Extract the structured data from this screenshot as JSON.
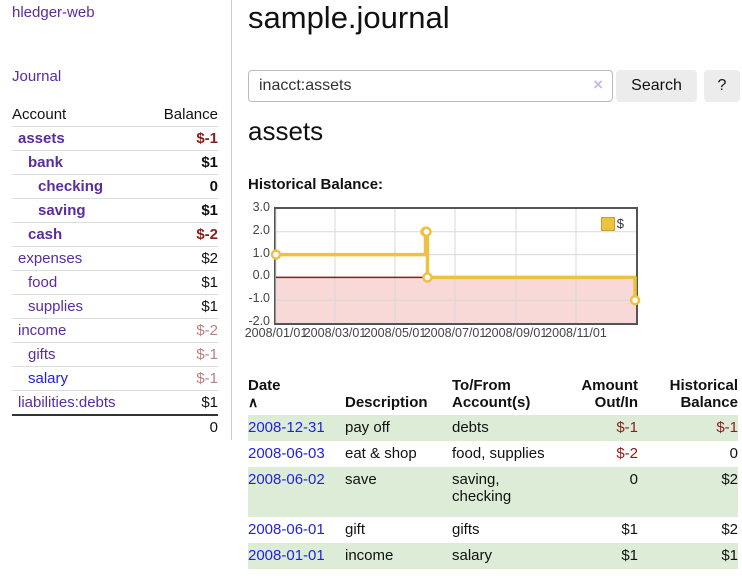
{
  "colors": {
    "accent_purple": "#5a2ca0",
    "link_blue": "#2222dd",
    "negative_red": "#8b1d1d",
    "faded_red": "#bd7e7e",
    "row_green": "#ddecd7",
    "series_gold": "#edc240"
  },
  "sidebar": {
    "app_title": "hledger-web",
    "journal_label": "Journal",
    "headers": {
      "account": "Account",
      "balance": "Balance"
    },
    "accounts": [
      {
        "name": "assets",
        "balance": "$-1"
      },
      {
        "name": "bank",
        "balance": "$1"
      },
      {
        "name": "checking",
        "balance": "0"
      },
      {
        "name": "saving",
        "balance": "$1"
      },
      {
        "name": "cash",
        "balance": "$-2"
      },
      {
        "name": "expenses",
        "balance": "$2"
      },
      {
        "name": "food",
        "balance": "$1"
      },
      {
        "name": "supplies",
        "balance": "$1"
      },
      {
        "name": "income",
        "balance": "$-2"
      },
      {
        "name": "gifts",
        "balance": "$-1"
      },
      {
        "name": "salary",
        "balance": "$-1"
      },
      {
        "name": "liabilities:debts",
        "balance": "$1"
      }
    ],
    "total": "0"
  },
  "main": {
    "title": "sample.journal",
    "account_heading": "assets",
    "chart_label": "Historical Balance:"
  },
  "search": {
    "value": "inacct:assets",
    "clear_icon": "×",
    "button_label": "Search",
    "help_label": "?"
  },
  "chart_data": {
    "type": "line",
    "step": true,
    "title": "Historical Balance:",
    "x_start": "2008-01-01",
    "x_end": "2008-12-31",
    "x_span_days": 366,
    "x_ticks": [
      "2008/01/01",
      "2008/03/01",
      "2008/05/01",
      "2008/07/01",
      "2008/09/01",
      "2008/11/01"
    ],
    "y_ticks": [
      "3.0",
      "2.0",
      "1.0",
      "0.0",
      "-1.0",
      "-2.0"
    ],
    "ylim": [
      -2,
      3
    ],
    "grid": true,
    "legend_position": "top-right",
    "zero_line_color": "#8b1a1a",
    "negative_fill": "#f9d8d8",
    "grid_color": "#d8d8d8",
    "series": [
      {
        "name": "$",
        "color": "#edc240",
        "points": [
          [
            "2008-01-01",
            1
          ],
          [
            "2008-06-01",
            2
          ],
          [
            "2008-06-02",
            2
          ],
          [
            "2008-06-03",
            0
          ],
          [
            "2008-12-31",
            -1
          ]
        ]
      }
    ]
  },
  "register": {
    "headers": {
      "date": "Date",
      "sort_icon": "∧",
      "description": "Description",
      "accounts": "To/From\nAccount(s)",
      "amount": "Amount\nOut/In",
      "balance": "Historical\nBalance"
    },
    "rows": [
      {
        "date": "2008-12-31",
        "description": "pay off",
        "accounts": "debts",
        "amount": "$-1",
        "balance": "$-1"
      },
      {
        "date": "2008-06-03",
        "description": "eat & shop",
        "accounts": "food, supplies",
        "amount": "$-2",
        "balance": "0"
      },
      {
        "date": "2008-06-02",
        "description": "save",
        "accounts": "saving,\nchecking",
        "amount": "0",
        "balance": "$2"
      },
      {
        "date": "2008-06-01",
        "description": "gift",
        "accounts": "gifts",
        "amount": "$1",
        "balance": "$2"
      },
      {
        "date": "2008-01-01",
        "description": "income",
        "accounts": "salary",
        "amount": "$1",
        "balance": "$1"
      }
    ]
  }
}
